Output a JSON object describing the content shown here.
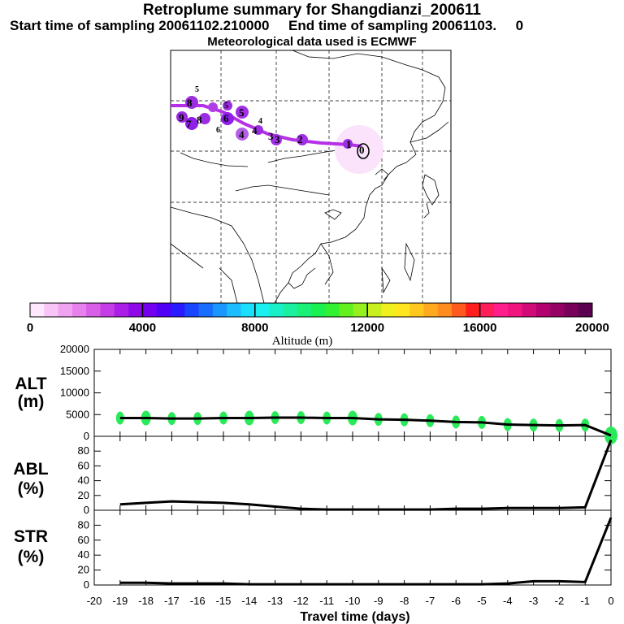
{
  "title": "Retroplume summary for Shangdianzi_200611",
  "subtitle": "Start time of sampling 20061102.210000     End time of sampling 20061103.     0",
  "met_note": "Meteorological data used is ECMWF",
  "colorbar": {
    "label": "Altitude (m)",
    "ticks": [
      "0",
      "4000",
      "8000",
      "12000",
      "16000",
      "20000"
    ],
    "colors": [
      "#fde8fd",
      "#f7c6f7",
      "#f0a3f0",
      "#e880ee",
      "#d95ee8",
      "#c43de6",
      "#aa1ee6",
      "#8f0ae8",
      "#7400f0",
      "#4f00f5",
      "#2a1aff",
      "#1a45ff",
      "#1a6eff",
      "#1a96ff",
      "#1abeff",
      "#1adfff",
      "#1af0f0",
      "#1af0c8",
      "#1af0a0",
      "#1af078",
      "#1af050",
      "#32f032",
      "#64f01e",
      "#96f01e",
      "#c8f01e",
      "#f0f01e",
      "#ffe61e",
      "#ffc81e",
      "#ffaa1e",
      "#ff8c1e",
      "#ff5a1e",
      "#ff1e1e",
      "#ff1e5a",
      "#ff1e8c",
      "#f0147f",
      "#d20a78",
      "#b4006e",
      "#960064",
      "#78005a",
      "#5a0050"
    ]
  },
  "map": {
    "station_symbol": "0",
    "labels": [
      {
        "text": "1"
      },
      {
        "text": "2"
      },
      {
        "text": "3"
      },
      {
        "text": "3"
      },
      {
        "text": "4"
      },
      {
        "text": "4"
      },
      {
        "text": "5"
      },
      {
        "text": "5"
      },
      {
        "text": "6"
      },
      {
        "text": "7"
      },
      {
        "text": "8"
      },
      {
        "text": "8"
      },
      {
        "text": "9"
      },
      {
        "text": "0"
      },
      {
        "text": "4"
      },
      {
        "text": "5"
      },
      {
        "text": "6"
      }
    ]
  },
  "panels": {
    "alt": {
      "label1": "ALT",
      "label2": "(m)",
      "ticks": [
        "20000",
        "15000",
        "10000",
        "5000",
        "0"
      ]
    },
    "abl": {
      "label1": "ABL",
      "label2": "(%)",
      "ticks": [
        "80",
        "60",
        "40",
        "20",
        "0"
      ]
    },
    "str": {
      "label1": "STR",
      "label2": "(%)",
      "ticks": [
        "80",
        "60",
        "40",
        "20",
        "0"
      ]
    }
  },
  "xaxis": {
    "label": "Travel time (days)",
    "ticks": [
      "-20",
      "-19",
      "-18",
      "-17",
      "-16",
      "-15",
      "-14",
      "-13",
      "-12",
      "-11",
      "-10",
      "-9",
      "-8",
      "-7",
      "-6",
      "-5",
      "-4",
      "-3",
      "-2",
      "-1",
      "0"
    ]
  },
  "chart_data": {
    "type": "line",
    "title": "Retroplume summary for Shangdianzi_200611",
    "xlabel": "Travel time (days)",
    "x": [
      -19,
      -18,
      -17,
      -16,
      -15,
      -14,
      -13,
      -12,
      -11,
      -10,
      -9,
      -8,
      -7,
      -6,
      -5,
      -4,
      -3,
      -2,
      -1,
      0
    ],
    "series": [
      {
        "name": "ALT (m)",
        "ylim": [
          0,
          20000
        ],
        "values": [
          4200,
          4200,
          4100,
          4100,
          4200,
          4200,
          4300,
          4300,
          4200,
          4200,
          3900,
          3800,
          3600,
          3300,
          3200,
          2700,
          2600,
          2500,
          2600,
          200
        ]
      },
      {
        "name": "ABL (%)",
        "ylim": [
          0,
          100
        ],
        "values": [
          8,
          10,
          12,
          11,
          10,
          8,
          5,
          2,
          1,
          1,
          1,
          1,
          1,
          2,
          2,
          3,
          3,
          3,
          4,
          95
        ]
      },
      {
        "name": "STR (%)",
        "ylim": [
          0,
          100
        ],
        "values": [
          3,
          3,
          2,
          2,
          2,
          1,
          1,
          1,
          1,
          1,
          1,
          1,
          1,
          1,
          1,
          2,
          5,
          5,
          4,
          90
        ]
      }
    ],
    "alt_scatter_sizes": [
      5,
      6,
      5,
      5,
      5,
      6,
      5,
      5,
      5,
      6,
      5,
      5,
      5,
      5,
      5,
      5,
      5,
      5,
      5,
      8
    ]
  }
}
